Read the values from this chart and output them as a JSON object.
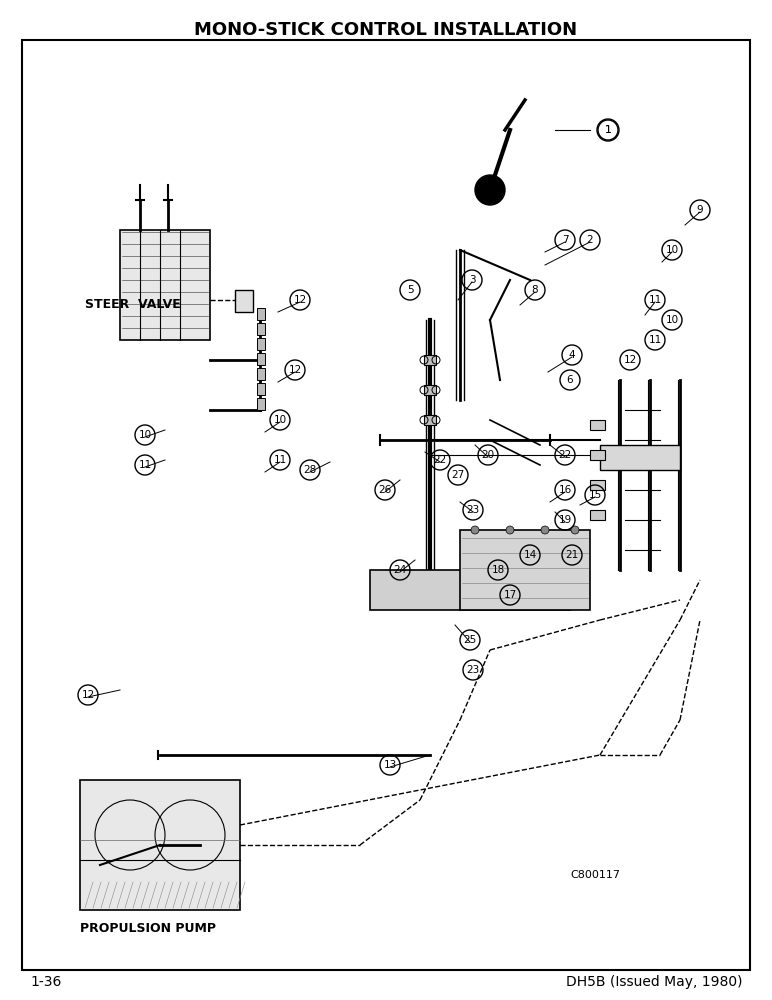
{
  "title": "MONO-STICK CONTROL INSTALLATION",
  "title_fontsize": 13,
  "title_fontweight": "bold",
  "footer_left": "1-36",
  "footer_right": "DH5B (Issued May, 1980)",
  "footer_fontsize": 10,
  "code": "C800117",
  "label_steer_valve": "STEER  VALVE",
  "label_propulsion_pump": "PROPULSION PUMP",
  "background": "#ffffff",
  "border_color": "#000000",
  "fig_width": 7.72,
  "fig_height": 10.0,
  "dpi": 100
}
